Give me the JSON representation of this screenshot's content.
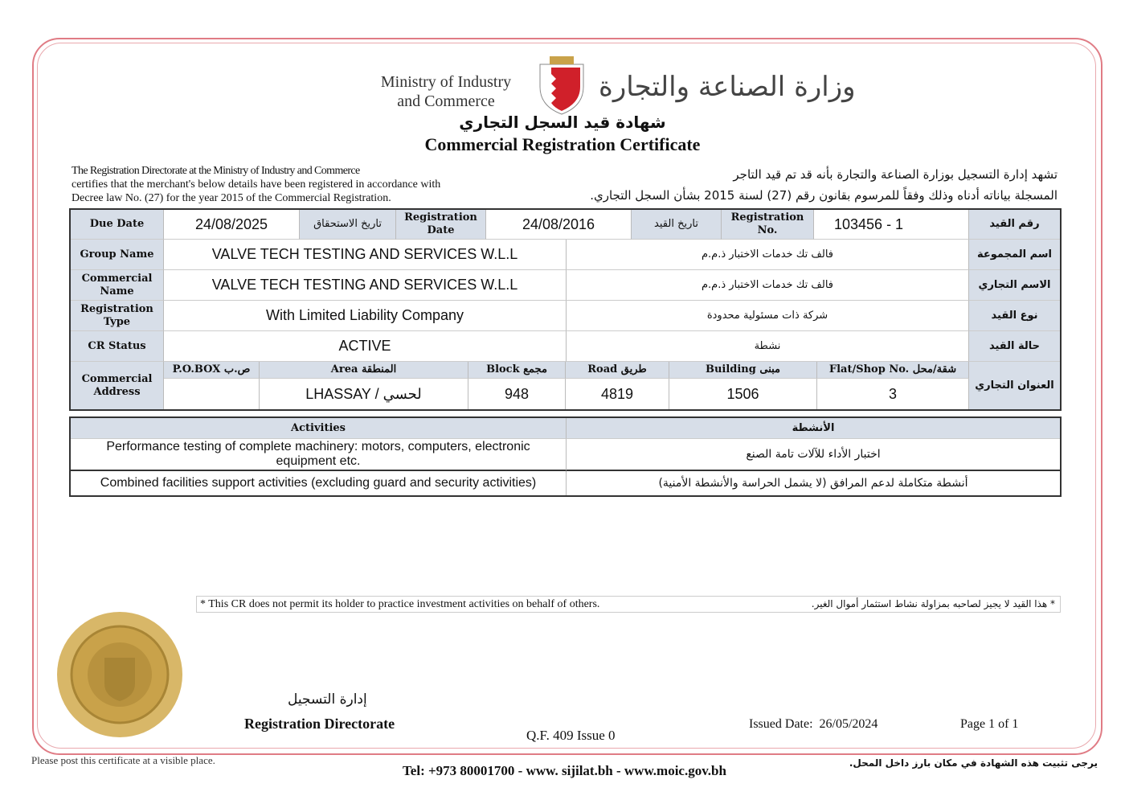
{
  "header": {
    "ministry_en_1": "Ministry of Industry",
    "ministry_en_2": "and Commerce",
    "ministry_ar": "وزارة الصناعة والتجارة",
    "title_ar": "شهادة قيد السجل التجاري",
    "title_en": "Commercial Registration Certificate"
  },
  "intro": {
    "en": [
      "The Registration Directorate at the Ministry of Industry and Commerce",
      "certifies that the merchant's below details have been registered in accordance with",
      "Decree law No. (27) for the year 2015 of the Commercial Registration."
    ],
    "ar": [
      "تشهد إدارة التسجيل بوزارة الصناعة والتجارة بأنه قد تم قيد التاجر",
      "المسجلة بياناته أدناه وذلك وفقاً للمرسوم بقانون رقم (27) لسنة 2015 بشأن السجل التجاري."
    ]
  },
  "details": {
    "due_date_label": "Due Date",
    "due_date": "24/08/2025",
    "due_date_label_ar": "تاريخ الاستحقاق",
    "reg_date_label": "Registration Date",
    "reg_date": "24/08/2016",
    "reg_date_label_ar": "تاريخ القيد",
    "reg_no_label": "Registration No.",
    "reg_no": "103456 - 1",
    "reg_no_label_ar": "رقم القيد",
    "rows": [
      {
        "label": "Group Name",
        "value_en": "VALVE TECH TESTING AND SERVICES W.L.L",
        "value_ar": "فالف تك خدمات الاختبار ذ.م.م",
        "label_ar": "اسم المجموعة"
      },
      {
        "label": "Commercial Name",
        "value_en": "VALVE TECH TESTING AND SERVICES W.L.L",
        "value_ar": "فالف تك خدمات الاختبار ذ.م.م",
        "label_ar": "الاسم التجاري"
      },
      {
        "label": "Registration Type",
        "value_en": "With Limited Liability Company",
        "value_ar": "شركة ذات مسئولية محدودة",
        "label_ar": "نوع القيد"
      },
      {
        "label": "CR Status",
        "value_en": "ACTIVE",
        "value_ar": "نشطة",
        "label_ar": "حالة القيد"
      }
    ],
    "address": {
      "label": "Commercial Address",
      "label_ar": "العنوان التجاري",
      "pobox_label": "P.O.BOX ص.ب",
      "pobox": "",
      "area_label": "Area المنطقة",
      "area": "LHASSAY / لحسي",
      "block_label": "Block مجمع",
      "block": "948",
      "road_label": "Road طريق",
      "road": "4819",
      "building_label": "Building مبنى",
      "building": "1506",
      "flat_label": "Flat/Shop No. شقة/محل",
      "flat": "3"
    }
  },
  "activities": {
    "header_en": "Activities",
    "header_ar": "الأنشطة",
    "items": [
      {
        "en": "Performance testing of complete machinery: motors, computers, electronic equipment etc.",
        "ar": "اختبار الأداء للآلات تامة الصنع"
      },
      {
        "en": "Combined facilities support activities (excluding guard and security activities)",
        "ar": "أنشطة متكاملة لدعم المرافق (لا يشمل الحراسة والأنشطة الأمنية)"
      }
    ]
  },
  "notice": {
    "en": "* This CR does not permit its holder to practice investment activities on behalf of others.",
    "ar": "* هذا القيد لا يجيز لصاحبه بمزاولة نشاط استثمار أموال الغير."
  },
  "footer": {
    "directorate_ar": "إدارة التسجيل",
    "directorate_en": "Registration Directorate",
    "form": "Q.F. 409 Issue 0",
    "issued_label": "Issued Date:",
    "issued_date": "26/05/2024",
    "page": "Page 1 of 1",
    "post_en": "Please post this certificate at a visible place.",
    "post_ar": "يرجى تثبيت هذه الشهادة في مكان بارز داخل المحل.",
    "contact": "Tel: +973 80001700 - www. sijilat.bh - www.moic.gov.bh"
  },
  "colors": {
    "border": "#e07c85",
    "header_cell": "#d7dee8",
    "seal": "#c9a24a"
  }
}
